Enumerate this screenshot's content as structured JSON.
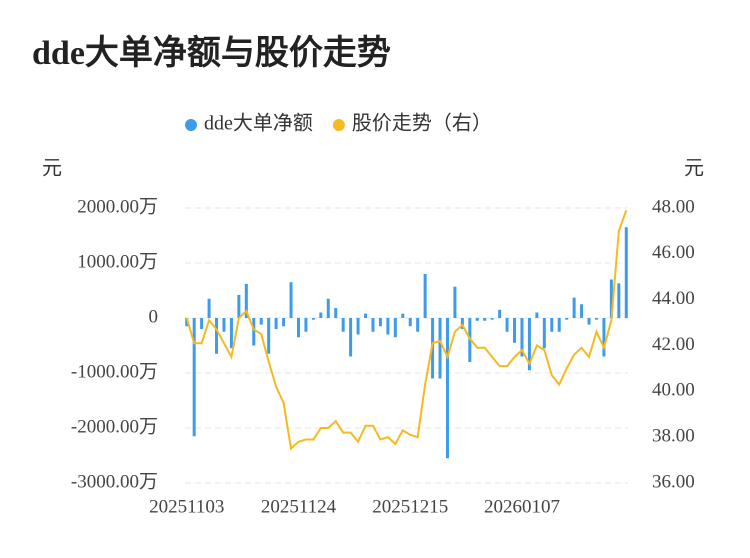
{
  "chart_data": {
    "type": "combo",
    "title": "dde大单净额与股价走势",
    "y_label": "元",
    "y2_label": "元",
    "categories": [
      "20251103",
      null,
      null,
      null,
      null,
      null,
      null,
      null,
      null,
      null,
      null,
      null,
      null,
      null,
      null,
      "20251124",
      null,
      null,
      null,
      null,
      null,
      null,
      null,
      null,
      null,
      null,
      null,
      null,
      null,
      null,
      "20251215",
      null,
      null,
      null,
      null,
      null,
      null,
      null,
      null,
      null,
      null,
      null,
      null,
      null,
      null,
      "20260107",
      null,
      null,
      null,
      null,
      null,
      null,
      null,
      null,
      null,
      null,
      null,
      null,
      null,
      null
    ],
    "series": [
      {
        "name": "dde大单净额",
        "type": "bar",
        "color": "#3d9be9",
        "values": [
          -150,
          -2150,
          -200,
          350,
          -650,
          -250,
          -550,
          420,
          620,
          -500,
          -120,
          -650,
          -200,
          -150,
          650,
          -350,
          -250,
          -30,
          100,
          350,
          180,
          -250,
          -700,
          -300,
          80,
          -250,
          -150,
          -300,
          -350,
          80,
          -150,
          -250,
          800,
          -1100,
          -1100,
          -2550,
          570,
          -200,
          -800,
          -50,
          -50,
          -30,
          150,
          -250,
          -450,
          -700,
          -950,
          100,
          -550,
          -250,
          -250,
          -30,
          370,
          250,
          -120,
          -30,
          -700,
          700,
          630,
          1650
        ]
      },
      {
        "name": "股价走势（右）",
        "type": "line",
        "axis": "y2",
        "color": "#f5b922",
        "values": [
          43.2,
          42.1,
          42.1,
          43.1,
          42.7,
          42.1,
          41.5,
          43.2,
          43.5,
          42.7,
          42.5,
          41.3,
          40.2,
          39.5,
          37.5,
          37.8,
          37.9,
          37.9,
          38.4,
          38.4,
          38.7,
          38.2,
          38.2,
          37.8,
          38.5,
          38.5,
          37.9,
          38.0,
          37.7,
          38.3,
          38.1,
          38.0,
          40.3,
          42.1,
          42.2,
          41.5,
          42.6,
          42.9,
          42.3,
          41.9,
          41.9,
          41.5,
          41.1,
          41.1,
          41.5,
          41.8,
          41.2,
          42.0,
          41.8,
          40.7,
          40.3,
          41.0,
          41.6,
          41.9,
          41.5,
          42.6,
          41.9,
          43.1,
          47.0,
          47.9
        ]
      }
    ],
    "ylim": [
      -3000,
      2000
    ],
    "yticks": [
      {
        "value": -3000,
        "label": "-3000.00万"
      },
      {
        "value": -2000,
        "label": "-2000.00万"
      },
      {
        "value": -1000,
        "label": "-1000.00万"
      },
      0,
      {
        "value": 1000,
        "label": "1000.00万"
      },
      {
        "value": 2000,
        "label": "2000.00万"
      }
    ],
    "y2lim": [
      36,
      48
    ],
    "y2ticks": [
      {
        "value": 36,
        "label": "36.00"
      },
      {
        "value": 38,
        "label": "38.00"
      },
      {
        "value": 40,
        "label": "40.00"
      },
      {
        "value": 42,
        "label": "42.00"
      },
      {
        "value": 44,
        "label": "44.00"
      },
      {
        "value": 46,
        "label": "46.00"
      },
      {
        "value": 48,
        "label": "48.00"
      }
    ],
    "grid": true
  }
}
